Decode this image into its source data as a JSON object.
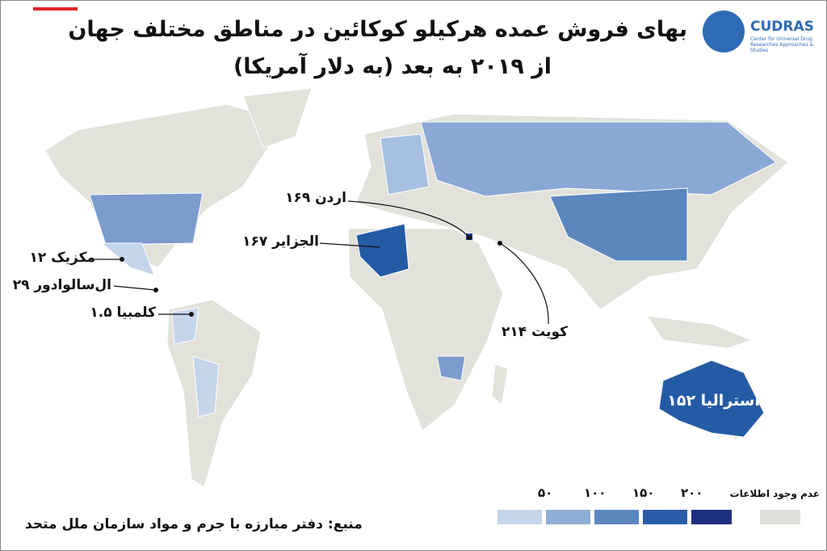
{
  "header": {
    "title_line1": "بهای فروش عمده هرکیلو کوکائین در مناطق مختلف جهان",
    "title_line2": "از ۲۰۱۹ به بعد (به دلار آمریکا)"
  },
  "logo": {
    "name": "CUDRAS",
    "tagline": "Center for Universal Drug Researches Approaches & Studies"
  },
  "callouts": {
    "jordan": "اردن ۱۶۹",
    "algeria": "الجزایر ۱۶۷",
    "mexico": "مکزیک ۱۲",
    "el_salvador": "ال‌سالوادور ۲۹",
    "colombia": "کلمبیا ۱.۵",
    "kuwait": "کویت ۲۱۴",
    "australia": "استرالیا ۱۵۲"
  },
  "legend": {
    "items": [
      "۵۰",
      "۱۰۰",
      "۱۵۰",
      "۲۰۰"
    ],
    "no_data": "عدم وجود اطلاعات"
  },
  "source": "منبع: دفتر مبارزه با جرم و مواد سازمان ملل متحد"
}
